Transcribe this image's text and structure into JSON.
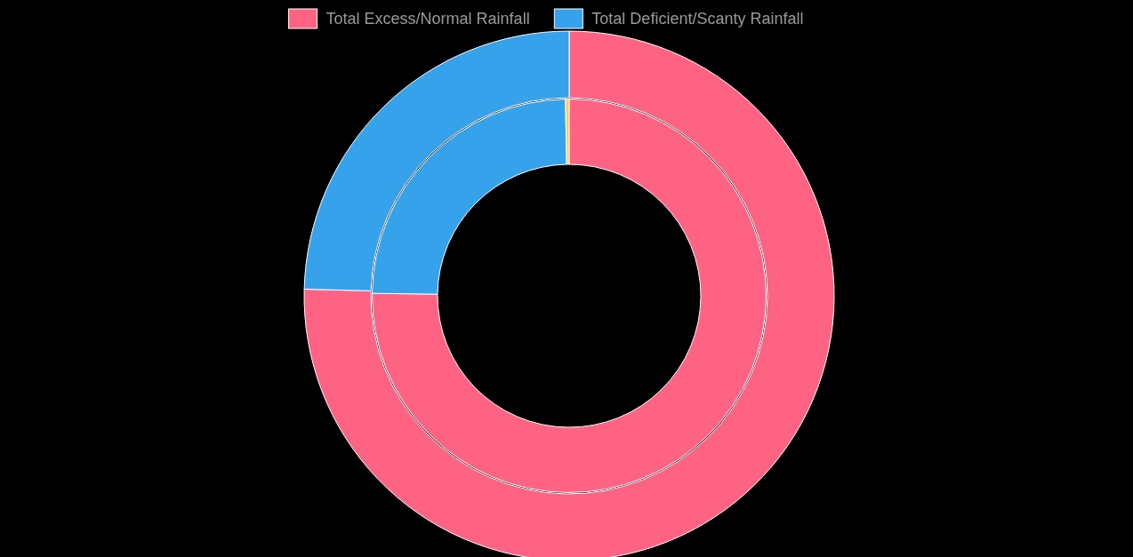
{
  "chart_data": {
    "type": "donut",
    "categories": [
      "Total Excess/Normal Rainfall",
      "Total Deficient/Scanty Rainfall",
      null
    ],
    "colors": [
      "#ff6384",
      "#36a2eb",
      "#ffcd56"
    ],
    "series": [
      {
        "values": [
          75.2,
          24.5,
          0.3
        ]
      },
      {
        "values": [
          75.4,
          24.6,
          null
        ]
      }
    ],
    "legend": "top"
  }
}
